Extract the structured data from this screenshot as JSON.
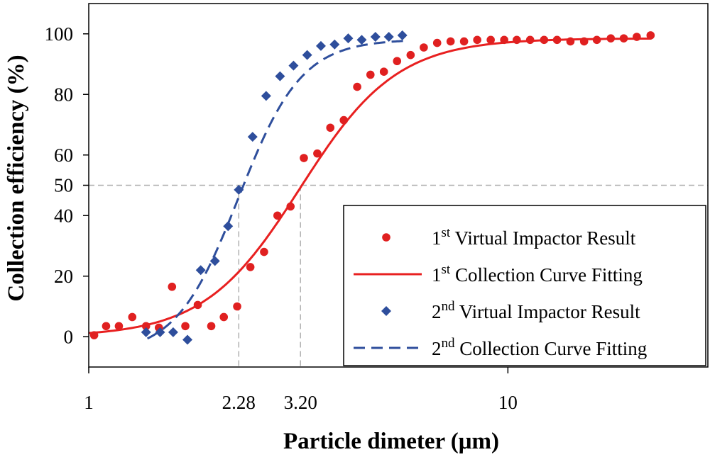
{
  "chart_data": {
    "type": "scatter",
    "title": "",
    "xlabel": "Particle dimeter (μm)",
    "ylabel": "Collection efficiency (%)",
    "x_scale": "log",
    "xlim": [
      1,
      30
    ],
    "ylim": [
      -10,
      110
    ],
    "x_ticks": [
      {
        "value": 1,
        "label": "1"
      },
      {
        "value": 2.28,
        "label": "2.28"
      },
      {
        "value": 3.2,
        "label": "3.20"
      },
      {
        "value": 10,
        "label": "10"
      }
    ],
    "y_ticks": [
      {
        "value": 0,
        "label": "0"
      },
      {
        "value": 20,
        "label": "20"
      },
      {
        "value": 40,
        "label": "40"
      },
      {
        "value": 50,
        "label": "50"
      },
      {
        "value": 60,
        "label": "60"
      },
      {
        "value": 80,
        "label": "80"
      },
      {
        "value": 100,
        "label": "100"
      }
    ],
    "reference_lines": {
      "y50": 50,
      "x_cut_1": 3.2,
      "x_cut_2": 2.28
    },
    "legend_position": "lower-right",
    "series": [
      {
        "name": "1st Virtual Impactor Result",
        "legend_main": "1",
        "legend_sup": "st",
        "legend_rest": " Virtual Impactor Result",
        "kind": "points",
        "marker": "circle",
        "color": "#e02020",
        "x": [
          1.03,
          1.1,
          1.18,
          1.27,
          1.37,
          1.47,
          1.58,
          1.7,
          1.82,
          1.96,
          2.1,
          2.26,
          2.43,
          2.62,
          2.82,
          3.03,
          3.26,
          3.51,
          3.77,
          4.06,
          4.37,
          4.7,
          5.06,
          5.44,
          5.86,
          6.3,
          6.78,
          7.3,
          7.86,
          8.45,
          9.1,
          9.8,
          10.5,
          11.3,
          12.2,
          13.1,
          14.1,
          15.2,
          16.3,
          17.6,
          18.9,
          20.3,
          21.9
        ],
        "y": [
          0.5,
          3.5,
          3.5,
          6.5,
          3.5,
          3,
          16.5,
          3.5,
          10.5,
          3.5,
          6.5,
          10,
          23,
          28,
          40,
          43,
          59,
          60.5,
          69,
          71.5,
          82.5,
          86.5,
          87.5,
          91,
          93,
          95.5,
          97,
          97.5,
          97.5,
          98,
          98,
          98,
          98,
          98,
          98,
          98,
          97.5,
          97.5,
          98,
          98.5,
          98.5,
          99,
          99.5
        ]
      },
      {
        "name": "1st Collection Curve Fitting",
        "legend_main": "1",
        "legend_sup": "st",
        "legend_rest": " Collection Curve Fitting",
        "kind": "curve",
        "dash": false,
        "color": "#e82020",
        "x_range": [
          1.0,
          22.0
        ],
        "d50": 3.2,
        "width": 0.115,
        "min": 0,
        "max": 98.5
      },
      {
        "name": "2nd Virtual Impactor Result",
        "legend_main": "2",
        "legend_sup": "nd",
        "legend_rest": " Virtual Impactor Result",
        "kind": "points",
        "marker": "diamond",
        "color": "#2e4e9c",
        "x": [
          1.37,
          1.48,
          1.59,
          1.72,
          1.85,
          2.0,
          2.15,
          2.28,
          2.46,
          2.65,
          2.86,
          3.08,
          3.32,
          3.58,
          3.86,
          4.16,
          4.48,
          4.83,
          5.2,
          5.6
        ],
        "y": [
          1.5,
          1.5,
          1.5,
          -1,
          22,
          25,
          36.5,
          48.5,
          66,
          79.5,
          86,
          89.5,
          93,
          96,
          96.5,
          98.5,
          98,
          99,
          99,
          99.5
        ]
      },
      {
        "name": "2nd Collection Curve Fitting",
        "legend_main": "2",
        "legend_sup": "nd",
        "legend_rest": " Collection Curve Fitting",
        "kind": "curve",
        "dash": true,
        "color": "#2e4e9c",
        "x_range": [
          1.38,
          5.8
        ],
        "d50": 2.28,
        "width": 0.075,
        "min": -6,
        "max": 98.2
      }
    ]
  }
}
